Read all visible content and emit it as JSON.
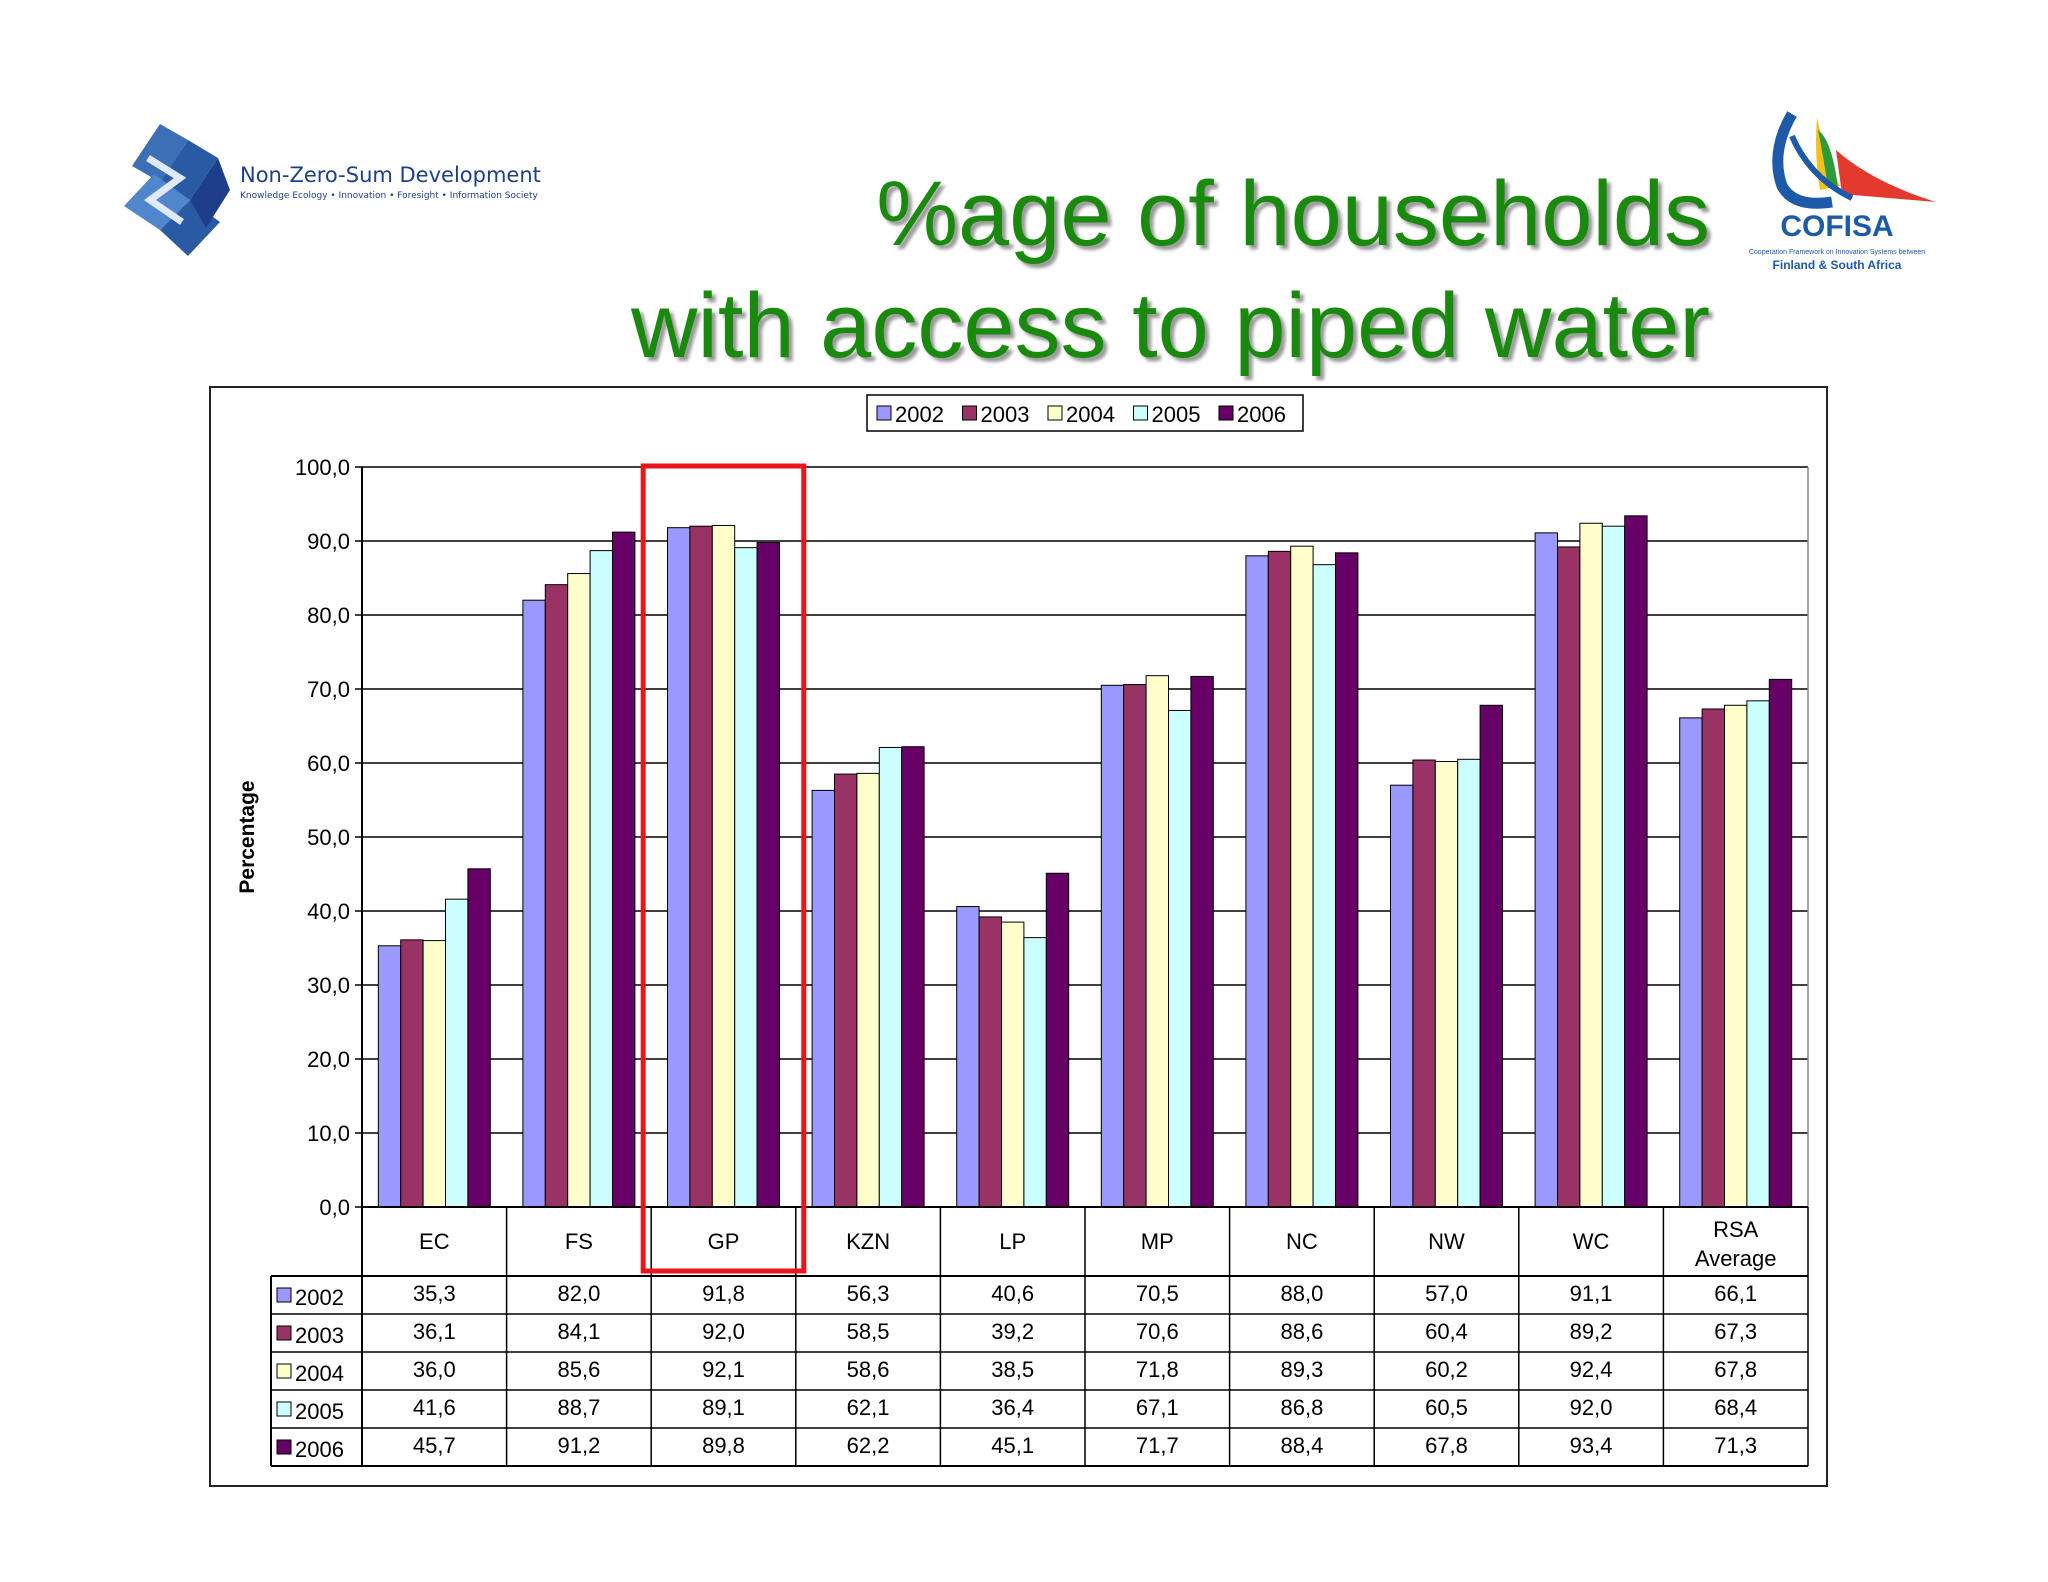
{
  "logos": {
    "left": {
      "name": "Non-Zero-Sum Development",
      "tagline": "Knowledge Ecology • Innovation • Foresight • Information Society"
    },
    "right": {
      "name": "COFISA",
      "tagline_1": "Cooperation Framework on Innovation Systems between",
      "tagline_2": "Finland & South Africa"
    }
  },
  "title": {
    "line1": "%age of households",
    "line2": "with access to piped water"
  },
  "colors": {
    "title": "#1a8a0e",
    "highlight": "#e8161b",
    "series": [
      "#9999ff",
      "#993366",
      "#ffffcc",
      "#ccffff",
      "#660066"
    ]
  },
  "chart_data": {
    "type": "bar",
    "title": "",
    "xlabel": "",
    "ylabel": "Percentage",
    "ylim": [
      0,
      100
    ],
    "yticks": [
      "0,0",
      "10,0",
      "20,0",
      "30,0",
      "40,0",
      "50,0",
      "60,0",
      "70,0",
      "80,0",
      "90,0",
      "100,0"
    ],
    "grid": true,
    "legend_position": "top-center",
    "categories": [
      "EC",
      "FS",
      "GP",
      "KZN",
      "LP",
      "MP",
      "NC",
      "NW",
      "WC",
      "RSA Average"
    ],
    "highlighted_category": "GP",
    "series": [
      {
        "name": "2002",
        "values": [
          35.3,
          82.0,
          91.8,
          56.3,
          40.6,
          70.5,
          88.0,
          57.0,
          91.1,
          66.1
        ],
        "labels": [
          "35,3",
          "82,0",
          "91,8",
          "56,3",
          "40,6",
          "70,5",
          "88,0",
          "57,0",
          "91,1",
          "66,1"
        ]
      },
      {
        "name": "2003",
        "values": [
          36.1,
          84.1,
          92.0,
          58.5,
          39.2,
          70.6,
          88.6,
          60.4,
          89.2,
          67.3
        ],
        "labels": [
          "36,1",
          "84,1",
          "92,0",
          "58,5",
          "39,2",
          "70,6",
          "88,6",
          "60,4",
          "89,2",
          "67,3"
        ]
      },
      {
        "name": "2004",
        "values": [
          36.0,
          85.6,
          92.1,
          58.6,
          38.5,
          71.8,
          89.3,
          60.2,
          92.4,
          67.8
        ],
        "labels": [
          "36,0",
          "85,6",
          "92,1",
          "58,6",
          "38,5",
          "71,8",
          "89,3",
          "60,2",
          "92,4",
          "67,8"
        ]
      },
      {
        "name": "2005",
        "values": [
          41.6,
          88.7,
          89.1,
          62.1,
          36.4,
          67.1,
          86.8,
          60.5,
          92.0,
          68.4
        ],
        "labels": [
          "41,6",
          "88,7",
          "89,1",
          "62,1",
          "36,4",
          "67,1",
          "86,8",
          "60,5",
          "92,0",
          "68,4"
        ]
      },
      {
        "name": "2006",
        "values": [
          45.7,
          91.2,
          89.8,
          62.2,
          45.1,
          71.7,
          88.4,
          67.8,
          93.4,
          71.3
        ],
        "labels": [
          "45,7",
          "91,2",
          "89,8",
          "62,2",
          "45,1",
          "71,7",
          "88,4",
          "67,8",
          "93,4",
          "71,3"
        ]
      }
    ]
  }
}
